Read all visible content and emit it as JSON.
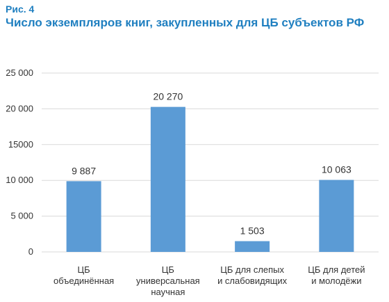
{
  "figure": {
    "label": "Рис. 4",
    "title": "Число экземпляров книг, закупленных для ЦБ субъектов РФ"
  },
  "chart_data": {
    "type": "bar",
    "categories": [
      [
        "ЦБ",
        "объединённая"
      ],
      [
        "ЦБ",
        "универсальная",
        "научная"
      ],
      [
        "ЦБ для слепых",
        "и слабовидящих"
      ],
      [
        "ЦБ для детей",
        "и молодёжи"
      ]
    ],
    "values": [
      9887,
      20270,
      1503,
      10063
    ],
    "data_labels": [
      "9 887",
      "20 270",
      "1 503",
      "10 063"
    ],
    "ylim": [
      0,
      25000
    ],
    "yticks": [
      0,
      5000,
      10000,
      15000,
      20000,
      25000
    ],
    "ytick_labels": [
      "0",
      "5 000",
      "10 000",
      "15000",
      "20 000",
      "25 000"
    ],
    "grid": true,
    "bar_color": "#5b9bd5",
    "grid_color": "#d9d9d9",
    "title_color": "#1f7fc0"
  }
}
